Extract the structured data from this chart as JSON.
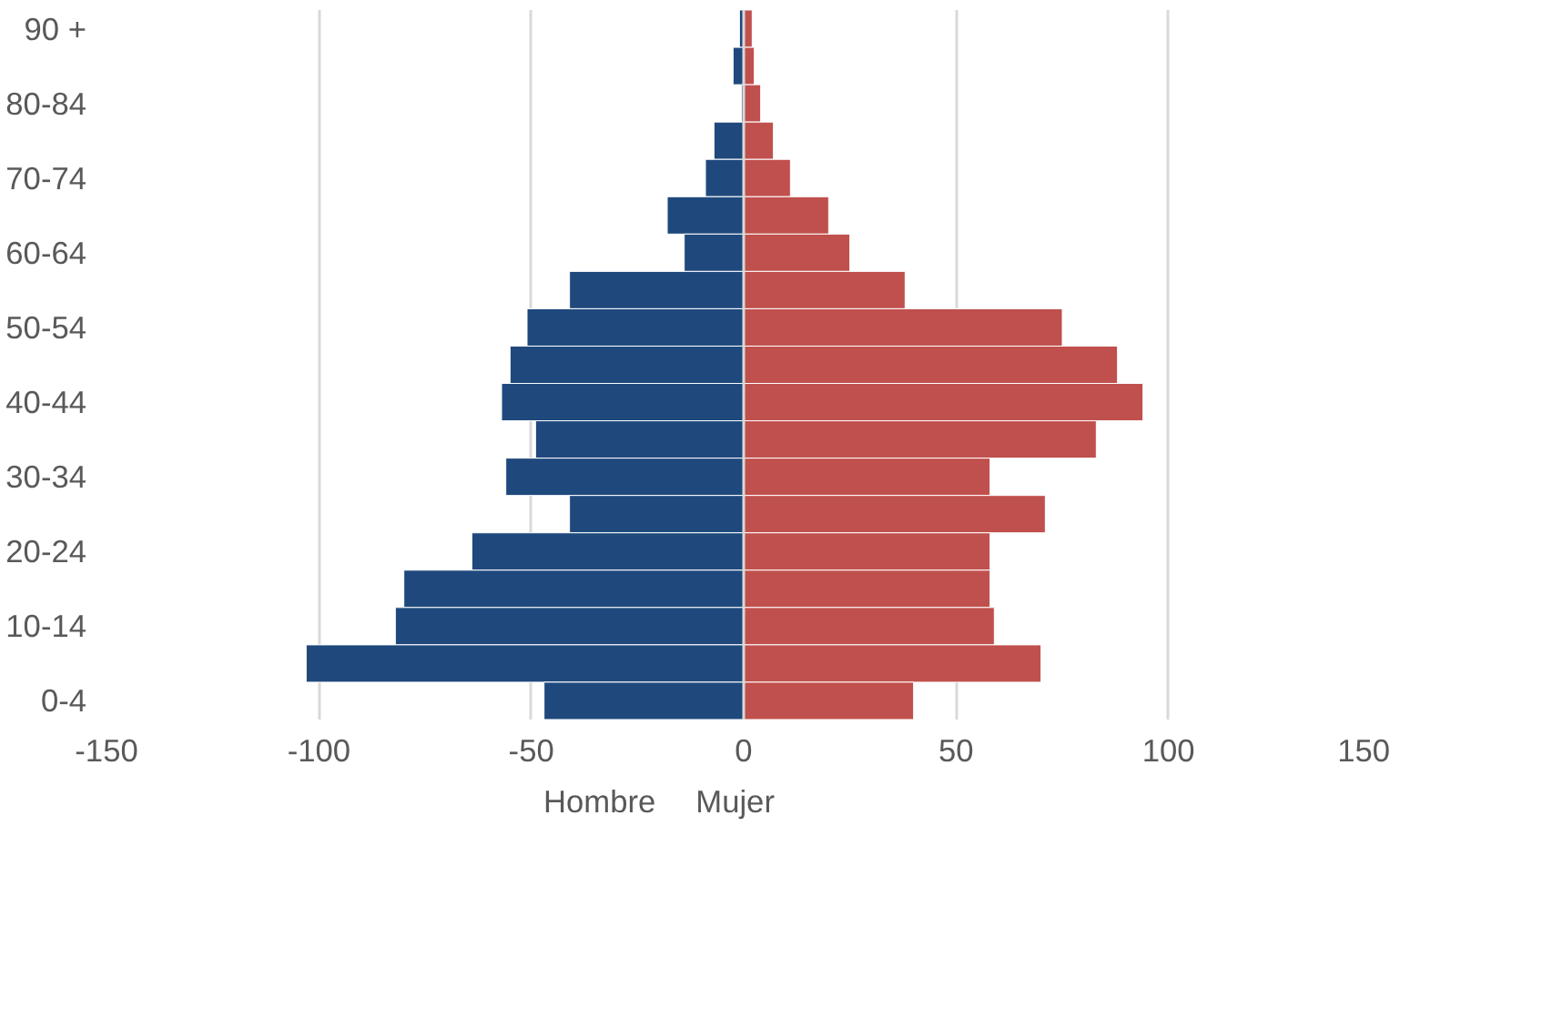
{
  "chart_data": {
    "type": "bar",
    "orientation": "horizontal",
    "stacked": true,
    "categories": [
      "90 +",
      null,
      "80-84",
      null,
      "70-74",
      null,
      "60-64",
      null,
      "50-54",
      null,
      "40-44",
      null,
      "30-34",
      null,
      "20-24",
      null,
      "10-14",
      null,
      "0-4"
    ],
    "series": [
      {
        "name": "Hombre",
        "color": "#1f497d",
        "values": [
          -1,
          -2.5,
          -0.5,
          -7,
          -9,
          -18,
          -14,
          -41,
          -51,
          -55,
          -57,
          -49,
          -56,
          -41,
          -64,
          -80,
          -82,
          -103,
          -47
        ]
      },
      {
        "name": "Mujer",
        "color": "#c0504d",
        "values": [
          2,
          2.5,
          4,
          7,
          11,
          20,
          25,
          38,
          75,
          88,
          94,
          83,
          58,
          71,
          58,
          58,
          59,
          70,
          40
        ]
      }
    ],
    "xlim": [
      -150,
      150
    ],
    "xticks": [
      -150,
      -100,
      -50,
      0,
      50,
      100,
      150
    ],
    "grid": "x",
    "legend": "bottom"
  }
}
